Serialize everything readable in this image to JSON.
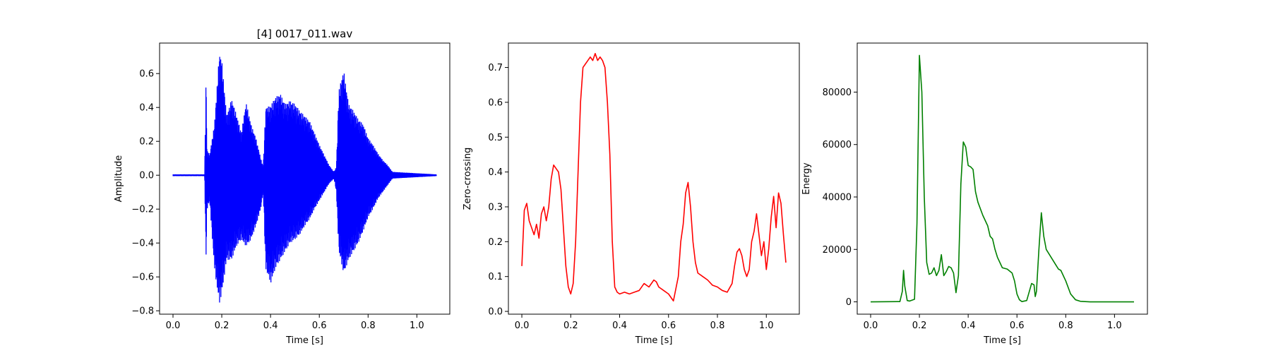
{
  "chart_data": [
    {
      "type": "line",
      "title": "[4] 0017_011.wav",
      "xlabel": "Time [s]",
      "ylabel": "Amplitude",
      "xlim": [
        -0.055,
        1.135
      ],
      "ylim": [
        -0.82,
        0.78
      ],
      "xticks": [
        0.0,
        0.2,
        0.4,
        0.6,
        0.8,
        1.0
      ],
      "xtick_labels": [
        "0.0",
        "0.2",
        "0.4",
        "0.6",
        "0.8",
        "1.0"
      ],
      "yticks": [
        -0.8,
        -0.6,
        -0.4,
        -0.2,
        0.0,
        0.2,
        0.4,
        0.6
      ],
      "ytick_labels": [
        "−0.8",
        "−0.6",
        "−0.4",
        "−0.2",
        "0.0",
        "0.2",
        "0.4",
        "0.6"
      ],
      "grid": false,
      "color": "#0000ff",
      "style": "waveform",
      "series": [
        {
          "x": [
            0.0,
            0.13,
            0.135,
            0.14,
            0.15,
            0.17,
            0.19,
            0.2,
            0.22,
            0.24,
            0.26,
            0.28,
            0.3,
            0.32,
            0.34,
            0.36,
            0.37,
            0.38,
            0.4,
            0.42,
            0.44,
            0.46,
            0.48,
            0.5,
            0.52,
            0.54,
            0.56,
            0.58,
            0.6,
            0.62,
            0.64,
            0.66,
            0.67,
            0.68,
            0.7,
            0.72,
            0.74,
            0.76,
            0.78,
            0.8,
            0.82,
            0.84,
            0.86,
            0.88,
            0.9,
            1.08
          ],
          "upper": [
            0.005,
            0.005,
            0.58,
            0.15,
            0.12,
            0.3,
            0.72,
            0.68,
            0.35,
            0.45,
            0.36,
            0.25,
            0.43,
            0.3,
            0.22,
            0.1,
            0.05,
            0.4,
            0.41,
            0.46,
            0.48,
            0.42,
            0.44,
            0.42,
            0.38,
            0.35,
            0.32,
            0.25,
            0.18,
            0.12,
            0.06,
            0.02,
            0.05,
            0.5,
            0.62,
            0.42,
            0.38,
            0.33,
            0.3,
            0.22,
            0.18,
            0.13,
            0.09,
            0.06,
            0.02,
            0.005
          ],
          "lower": [
            -0.005,
            -0.005,
            -0.52,
            -0.2,
            -0.15,
            -0.55,
            -0.76,
            -0.7,
            -0.5,
            -0.5,
            -0.42,
            -0.38,
            -0.42,
            -0.38,
            -0.3,
            -0.2,
            -0.1,
            -0.55,
            -0.64,
            -0.55,
            -0.5,
            -0.45,
            -0.4,
            -0.38,
            -0.35,
            -0.3,
            -0.26,
            -0.2,
            -0.15,
            -0.1,
            -0.05,
            -0.02,
            -0.1,
            -0.45,
            -0.58,
            -0.5,
            -0.45,
            -0.4,
            -0.33,
            -0.25,
            -0.2,
            -0.14,
            -0.1,
            -0.06,
            -0.02,
            -0.005
          ]
        }
      ]
    },
    {
      "type": "line",
      "title": "",
      "xlabel": "Time [s]",
      "ylabel": "Zero-crossing",
      "xlim": [
        -0.055,
        1.135
      ],
      "ylim": [
        -0.008,
        0.77
      ],
      "xticks": [
        0.0,
        0.2,
        0.4,
        0.6,
        0.8,
        1.0
      ],
      "xtick_labels": [
        "0.0",
        "0.2",
        "0.4",
        "0.6",
        "0.8",
        "1.0"
      ],
      "yticks": [
        0.0,
        0.1,
        0.2,
        0.3,
        0.4,
        0.5,
        0.6,
        0.7
      ],
      "ytick_labels": [
        "0.0",
        "0.1",
        "0.2",
        "0.3",
        "0.4",
        "0.5",
        "0.6",
        "0.7"
      ],
      "grid": false,
      "color": "#ff0000",
      "series": [
        {
          "x": [
            0.0,
            0.01,
            0.02,
            0.03,
            0.04,
            0.05,
            0.06,
            0.07,
            0.08,
            0.09,
            0.1,
            0.11,
            0.12,
            0.13,
            0.14,
            0.15,
            0.16,
            0.17,
            0.18,
            0.19,
            0.2,
            0.21,
            0.22,
            0.23,
            0.24,
            0.25,
            0.26,
            0.27,
            0.28,
            0.29,
            0.3,
            0.31,
            0.32,
            0.33,
            0.34,
            0.35,
            0.36,
            0.37,
            0.38,
            0.39,
            0.4,
            0.42,
            0.44,
            0.46,
            0.48,
            0.5,
            0.52,
            0.54,
            0.55,
            0.56,
            0.58,
            0.6,
            0.62,
            0.64,
            0.65,
            0.66,
            0.67,
            0.68,
            0.69,
            0.7,
            0.71,
            0.72,
            0.74,
            0.76,
            0.78,
            0.8,
            0.82,
            0.84,
            0.86,
            0.87,
            0.88,
            0.89,
            0.9,
            0.91,
            0.92,
            0.93,
            0.94,
            0.95,
            0.96,
            0.97,
            0.98,
            0.99,
            1.0,
            1.01,
            1.02,
            1.03,
            1.04,
            1.05,
            1.06,
            1.07,
            1.08
          ],
          "y": [
            0.13,
            0.29,
            0.31,
            0.26,
            0.24,
            0.22,
            0.25,
            0.21,
            0.28,
            0.3,
            0.26,
            0.3,
            0.38,
            0.42,
            0.41,
            0.4,
            0.35,
            0.24,
            0.13,
            0.07,
            0.05,
            0.08,
            0.2,
            0.4,
            0.6,
            0.7,
            0.71,
            0.72,
            0.73,
            0.72,
            0.74,
            0.72,
            0.73,
            0.72,
            0.7,
            0.6,
            0.45,
            0.2,
            0.07,
            0.055,
            0.05,
            0.055,
            0.05,
            0.055,
            0.06,
            0.08,
            0.07,
            0.09,
            0.085,
            0.07,
            0.06,
            0.05,
            0.03,
            0.1,
            0.2,
            0.25,
            0.34,
            0.37,
            0.3,
            0.2,
            0.14,
            0.11,
            0.1,
            0.09,
            0.075,
            0.07,
            0.06,
            0.055,
            0.08,
            0.13,
            0.17,
            0.18,
            0.16,
            0.12,
            0.1,
            0.12,
            0.2,
            0.23,
            0.28,
            0.22,
            0.16,
            0.2,
            0.12,
            0.18,
            0.27,
            0.33,
            0.24,
            0.34,
            0.31,
            0.22,
            0.14
          ]
        }
      ]
    },
    {
      "type": "line",
      "title": "",
      "xlabel": "Time [s]",
      "ylabel": "Energy",
      "xlim": [
        -0.055,
        1.135
      ],
      "ylim": [
        -4700,
        98700
      ],
      "xticks": [
        0.0,
        0.2,
        0.4,
        0.6,
        0.8,
        1.0
      ],
      "xtick_labels": [
        "0.0",
        "0.2",
        "0.4",
        "0.6",
        "0.8",
        "1.0"
      ],
      "yticks": [
        0,
        20000,
        40000,
        60000,
        80000
      ],
      "ytick_labels": [
        "0",
        "20000",
        "40000",
        "60000",
        "80000"
      ],
      "grid": false,
      "color": "#008000",
      "series": [
        {
          "x": [
            0.0,
            0.12,
            0.13,
            0.135,
            0.14,
            0.15,
            0.16,
            0.18,
            0.19,
            0.2,
            0.21,
            0.22,
            0.23,
            0.24,
            0.25,
            0.26,
            0.27,
            0.28,
            0.29,
            0.3,
            0.31,
            0.32,
            0.33,
            0.34,
            0.35,
            0.36,
            0.37,
            0.38,
            0.39,
            0.4,
            0.41,
            0.42,
            0.43,
            0.44,
            0.46,
            0.48,
            0.49,
            0.5,
            0.51,
            0.52,
            0.54,
            0.56,
            0.58,
            0.59,
            0.6,
            0.61,
            0.62,
            0.64,
            0.66,
            0.67,
            0.675,
            0.68,
            0.69,
            0.7,
            0.71,
            0.72,
            0.74,
            0.76,
            0.77,
            0.78,
            0.8,
            0.82,
            0.84,
            0.86,
            0.9,
            1.08
          ],
          "y": [
            0,
            100,
            4000,
            12000,
            6000,
            500,
            300,
            1000,
            30000,
            94000,
            80000,
            40000,
            15000,
            10500,
            11000,
            13000,
            10000,
            12000,
            18000,
            10000,
            11500,
            13500,
            13000,
            11000,
            3500,
            10000,
            45000,
            61000,
            59000,
            52000,
            51500,
            50500,
            42000,
            38000,
            33000,
            29000,
            25000,
            24000,
            20000,
            17000,
            13000,
            12500,
            11000,
            8000,
            3000,
            800,
            100,
            500,
            7000,
            6500,
            2000,
            4000,
            20000,
            34000,
            25000,
            20000,
            17000,
            14000,
            12500,
            12000,
            8000,
            3000,
            800,
            200,
            0,
            0
          ]
        }
      ]
    }
  ]
}
